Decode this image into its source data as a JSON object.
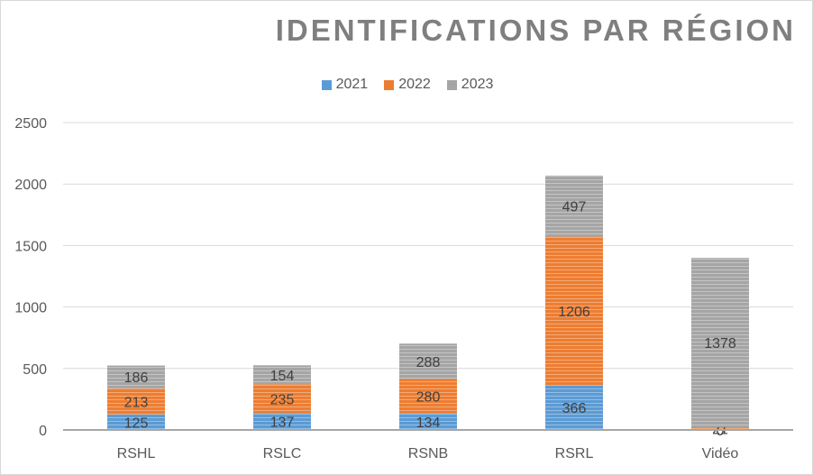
{
  "chart_data": {
    "type": "bar",
    "stacked": true,
    "title": "IDENTIFICATIONS PAR RÉGION",
    "categories": [
      "RSHL",
      "RSLC",
      "RSNB",
      "RSRL",
      "Vidéo"
    ],
    "series": [
      {
        "name": "2021",
        "color": "#5b9bd5",
        "values": [
          125,
          137,
          134,
          366,
          0
        ]
      },
      {
        "name": "2022",
        "color": "#ed7d31",
        "values": [
          213,
          235,
          280,
          1206,
          21
        ]
      },
      {
        "name": "2023",
        "color": "#a5a5a5",
        "values": [
          186,
          154,
          288,
          497,
          1378
        ]
      }
    ],
    "data_labels": [
      [
        "125",
        "137",
        "134",
        "366",
        "0"
      ],
      [
        "213",
        "235",
        "280",
        "1206",
        "21"
      ],
      [
        "186",
        "154",
        "288",
        "497",
        "1378"
      ]
    ],
    "yticks": [
      "0",
      "500",
      "1000",
      "1500",
      "2000",
      "2500"
    ],
    "ylim": [
      0,
      2500
    ],
    "grid": true,
    "legend_position": "top"
  }
}
